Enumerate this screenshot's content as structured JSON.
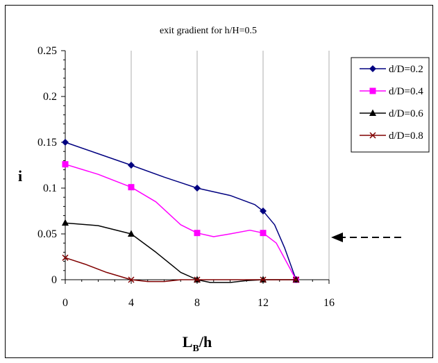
{
  "chart_data": {
    "type": "line",
    "title": "exit gradient for h/H=0.5",
    "xlabel": "L",
    "xlabel_sub": "B",
    "xlabel_tail": "/h",
    "ylabel": "i",
    "xlim": [
      0,
      16
    ],
    "ylim": [
      0,
      0.25
    ],
    "x_ticks": [
      0,
      4,
      8,
      12,
      16
    ],
    "x_tick_labels": [
      "0",
      "4",
      "8",
      "12",
      "16"
    ],
    "y_ticks": [
      0,
      0.05,
      0.1,
      0.15,
      0.2,
      0.25
    ],
    "y_tick_labels": [
      "0",
      "0.05",
      "0.1",
      "0.15",
      "0.2",
      "0.25"
    ],
    "grid": "vertical",
    "legend_position": "right",
    "reference_arrow": {
      "y": 0.05,
      "direction": "left",
      "style": "dashed"
    },
    "series": [
      {
        "name": "d/D=0.2",
        "color": "#000080",
        "marker": "diamond",
        "points": [
          [
            0,
            0.15
          ],
          [
            4,
            0.125
          ],
          [
            8,
            0.1
          ],
          [
            12,
            0.075
          ],
          [
            14,
            0
          ]
        ],
        "curve": [
          [
            0,
            0.15
          ],
          [
            2,
            0.1375
          ],
          [
            4,
            0.125
          ],
          [
            6,
            0.112
          ],
          [
            8,
            0.1
          ],
          [
            10,
            0.092
          ],
          [
            11.5,
            0.082
          ],
          [
            12,
            0.075
          ],
          [
            12.7,
            0.06
          ],
          [
            13.3,
            0.035
          ],
          [
            14,
            0
          ]
        ]
      },
      {
        "name": "d/D=0.4",
        "color": "#ff00ff",
        "marker": "square",
        "points": [
          [
            0,
            0.126
          ],
          [
            4,
            0.101
          ],
          [
            8,
            0.051
          ],
          [
            12,
            0.051
          ],
          [
            14,
            0
          ]
        ],
        "curve": [
          [
            0,
            0.126
          ],
          [
            2,
            0.115
          ],
          [
            4,
            0.101
          ],
          [
            5.5,
            0.085
          ],
          [
            7,
            0.06
          ],
          [
            8,
            0.051
          ],
          [
            9,
            0.047
          ],
          [
            10,
            0.05
          ],
          [
            11.2,
            0.054
          ],
          [
            12,
            0.051
          ],
          [
            12.8,
            0.04
          ],
          [
            13.4,
            0.02
          ],
          [
            14,
            0
          ]
        ]
      },
      {
        "name": "d/D=0.6",
        "color": "#000000",
        "marker": "triangle",
        "points": [
          [
            0,
            0.062
          ],
          [
            4,
            0.05
          ],
          [
            8,
            0
          ],
          [
            12,
            0
          ],
          [
            14,
            0
          ]
        ],
        "curve": [
          [
            0,
            0.062
          ],
          [
            2,
            0.059
          ],
          [
            4,
            0.05
          ],
          [
            5.5,
            0.03
          ],
          [
            7,
            0.008
          ],
          [
            8,
            0
          ],
          [
            8.8,
            -0.003
          ],
          [
            10,
            -0.003
          ],
          [
            11,
            -0.001
          ],
          [
            12,
            0
          ],
          [
            14,
            0
          ]
        ]
      },
      {
        "name": "d/D=0.8",
        "color": "#800000",
        "marker": "x",
        "points": [
          [
            0,
            0.024
          ],
          [
            4,
            0
          ],
          [
            8,
            0
          ],
          [
            12,
            0
          ],
          [
            14,
            0
          ]
        ],
        "curve": [
          [
            0,
            0.024
          ],
          [
            1.2,
            0.017
          ],
          [
            2.5,
            0.008
          ],
          [
            4,
            0
          ],
          [
            5,
            -0.002
          ],
          [
            6,
            -0.002
          ],
          [
            7,
            0
          ],
          [
            8,
            0
          ],
          [
            12,
            0
          ],
          [
            14,
            0
          ]
        ]
      }
    ]
  }
}
